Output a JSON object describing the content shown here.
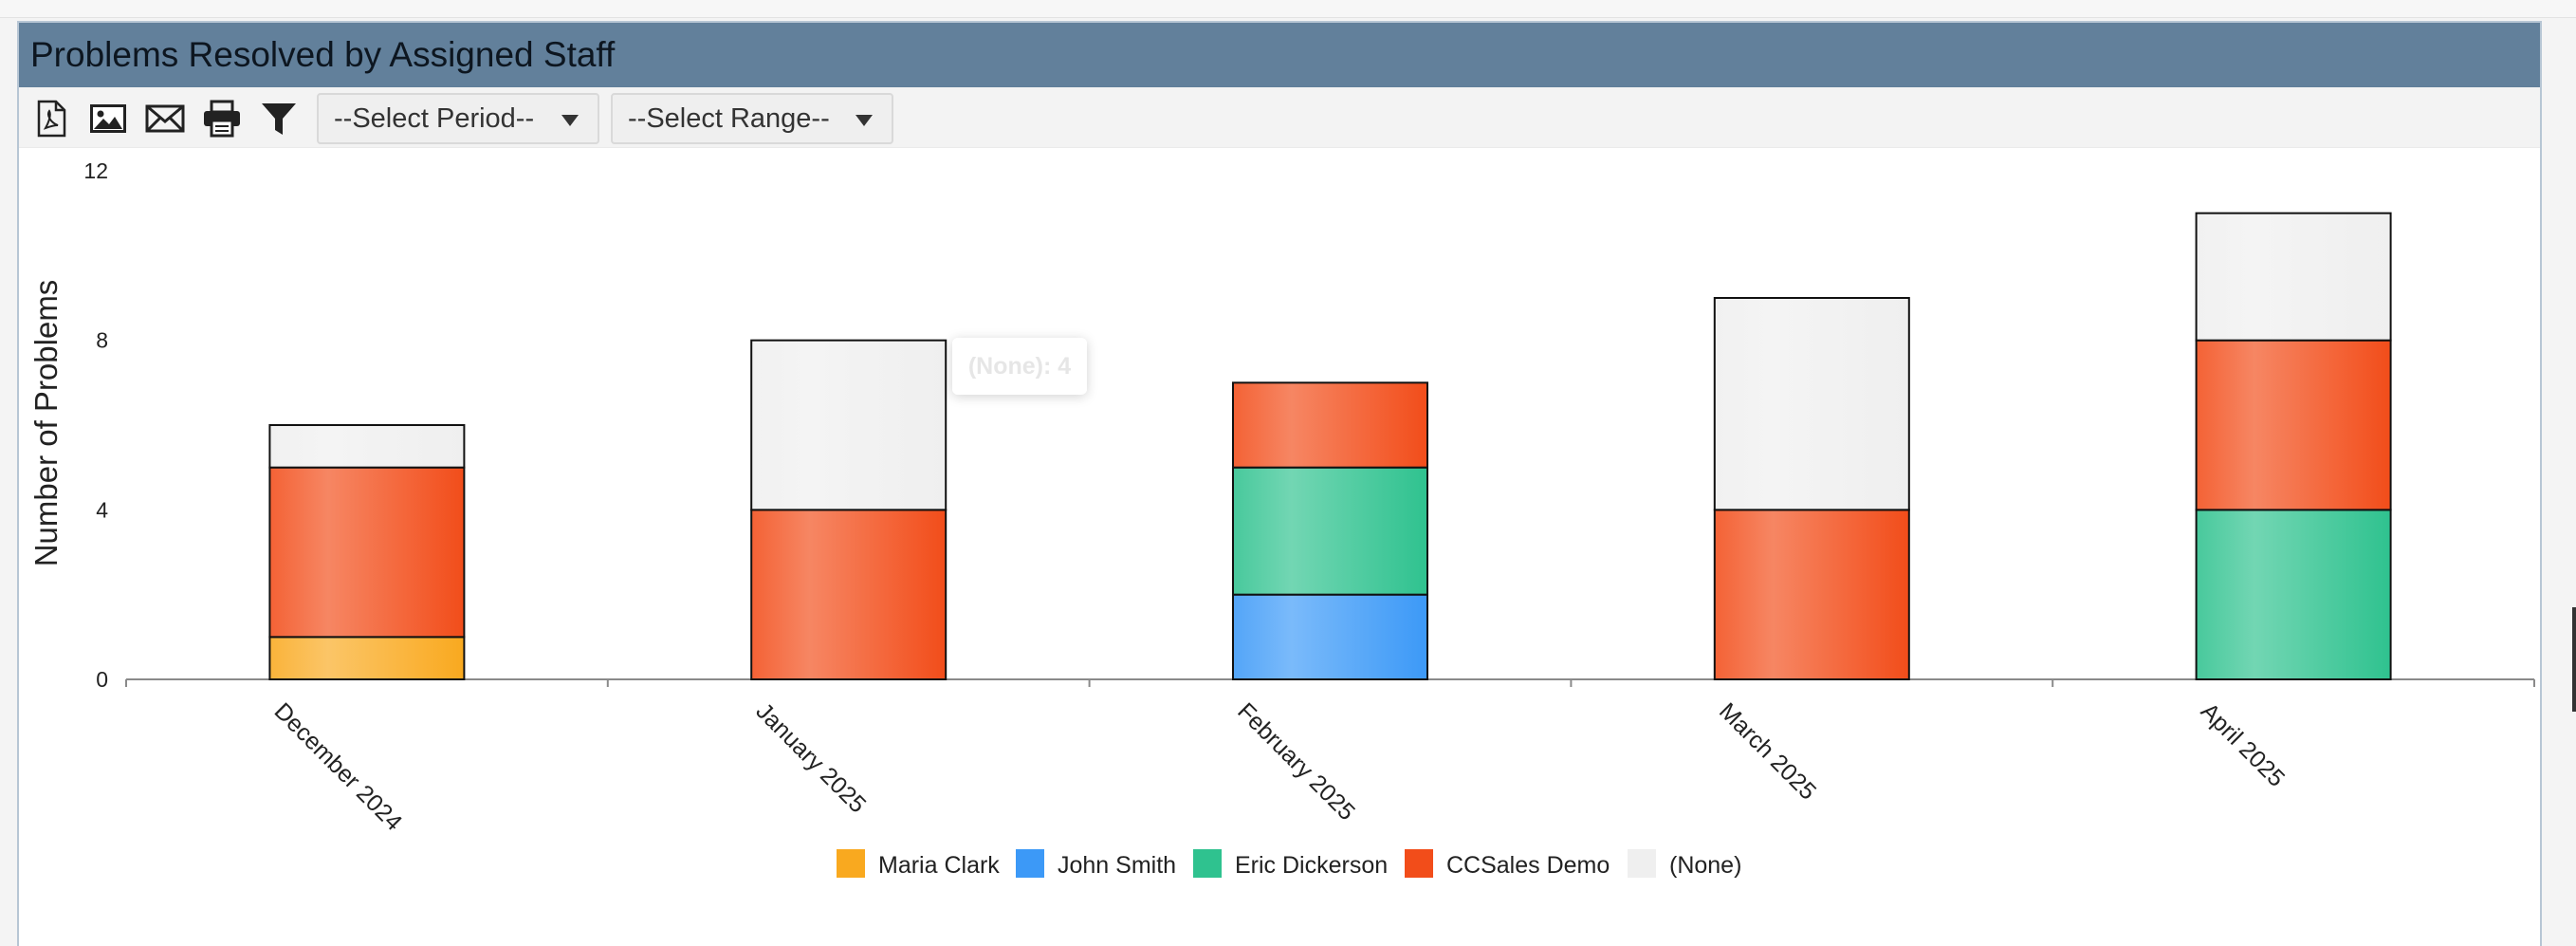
{
  "header": {
    "title": "Problems Resolved by Assigned Staff"
  },
  "toolbar": {
    "buttons": [
      {
        "name": "pdf-export-button",
        "icon": "pdf-icon"
      },
      {
        "name": "image-export-button",
        "icon": "image-icon"
      },
      {
        "name": "email-button",
        "icon": "envelope-icon"
      },
      {
        "name": "print-button",
        "icon": "printer-icon"
      },
      {
        "name": "filter-button",
        "icon": "funnel-icon"
      }
    ],
    "period_select": "--Select Period--",
    "range_select": "--Select Range--"
  },
  "tooltip": {
    "text": "(None): 4"
  },
  "chart_data": {
    "type": "bar",
    "stacked": true,
    "title": "Problems Resolved by Assigned Staff",
    "xlabel": "",
    "ylabel": "Number of Problems",
    "ylim": [
      0,
      12
    ],
    "yticks": [
      0,
      4,
      8,
      12
    ],
    "categories": [
      "December 2024",
      "January 2025",
      "February 2025",
      "March 2025",
      "April 2025"
    ],
    "series": [
      {
        "name": "Maria Clark",
        "color": "#f9a91f",
        "values": [
          1,
          0,
          0,
          0,
          0
        ]
      },
      {
        "name": "John Smith",
        "color": "#3c99f7",
        "values": [
          0,
          0,
          2,
          0,
          0
        ]
      },
      {
        "name": "Eric Dickerson",
        "color": "#2fc28f",
        "values": [
          0,
          0,
          3,
          0,
          4
        ]
      },
      {
        "name": "CCSales Demo",
        "color": "#f24d1a",
        "values": [
          4,
          4,
          2,
          4,
          4
        ]
      },
      {
        "name": "(None)",
        "color": "#efefef",
        "values": [
          1,
          4,
          0,
          5,
          3
        ]
      }
    ],
    "legend_position": "bottom",
    "grid": false
  }
}
